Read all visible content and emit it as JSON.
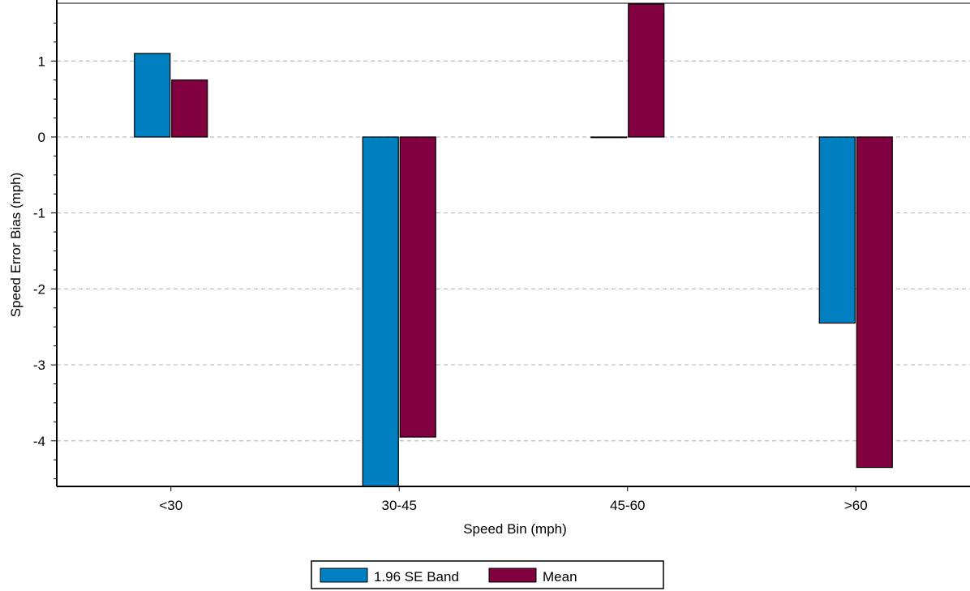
{
  "chart_data": {
    "type": "bar",
    "categories": [
      "<30",
      "30-45",
      "45-60",
      ">60"
    ],
    "series": [
      {
        "name": "1.96 SE Band",
        "color": "#0080C0",
        "values": [
          1.1,
          -4.6,
          0.0,
          -2.45
        ]
      },
      {
        "name": "Mean",
        "color": "#800040",
        "values": [
          0.75,
          -3.95,
          1.75,
          -4.35
        ]
      }
    ],
    "title": "",
    "xlabel": "Speed Bin (mph)",
    "ylabel": "Speed Error Bias (mph)",
    "ylim": [
      -4.6,
      1.75
    ],
    "yticks": [
      1,
      0,
      -1,
      -2,
      -3,
      -4
    ],
    "grid": "horizontal-dashed",
    "legend_position": "bottom-center"
  }
}
